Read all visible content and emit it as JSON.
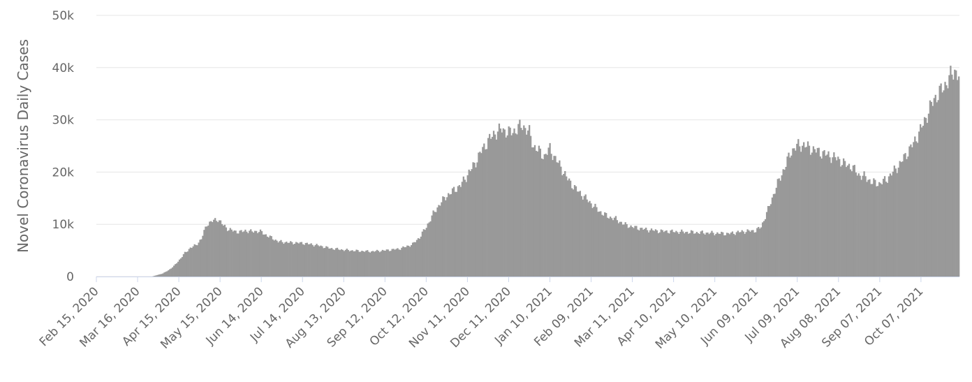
{
  "chart_data": {
    "type": "bar",
    "ylabel": "Novel Coronavirus Daily Cases",
    "ylim": [
      0,
      50000
    ],
    "y_ticks": [
      {
        "value": 0,
        "label": "0"
      },
      {
        "value": 10000,
        "label": "10k"
      },
      {
        "value": 20000,
        "label": "20k"
      },
      {
        "value": 30000,
        "label": "30k"
      },
      {
        "value": 40000,
        "label": "40k"
      },
      {
        "value": 50000,
        "label": "50k"
      }
    ],
    "x_ticks": [
      {
        "day": 0,
        "label": "Feb 15, 2020"
      },
      {
        "day": 30,
        "label": "Mar 16, 2020"
      },
      {
        "day": 60,
        "label": "Apr 15, 2020"
      },
      {
        "day": 90,
        "label": "May 15, 2020"
      },
      {
        "day": 120,
        "label": "Jun 14, 2020"
      },
      {
        "day": 150,
        "label": "Jul 14, 2020"
      },
      {
        "day": 180,
        "label": "Aug 13, 2020"
      },
      {
        "day": 210,
        "label": "Sep 12, 2020"
      },
      {
        "day": 240,
        "label": "Oct 12, 2020"
      },
      {
        "day": 270,
        "label": "Nov 11, 2020"
      },
      {
        "day": 300,
        "label": "Dec 11, 2020"
      },
      {
        "day": 330,
        "label": "Jan 10, 2021"
      },
      {
        "day": 360,
        "label": "Feb 09, 2021"
      },
      {
        "day": 390,
        "label": "Mar 11, 2021"
      },
      {
        "day": 420,
        "label": "Apr 10, 2021"
      },
      {
        "day": 450,
        "label": "May 10, 2021"
      },
      {
        "day": 480,
        "label": "Jun 09, 2021"
      },
      {
        "day": 510,
        "label": "Jul 09, 2021"
      },
      {
        "day": 540,
        "label": "Aug 08, 2021"
      },
      {
        "day": 570,
        "label": "Sep 07, 2021"
      },
      {
        "day": 600,
        "label": "Oct 07, 2021"
      }
    ],
    "x_range_days": [
      0,
      628
    ],
    "bar_color": "#999999",
    "grid": true,
    "key_points": [
      [
        0,
        0
      ],
      [
        40,
        0
      ],
      [
        44,
        300
      ],
      [
        48,
        600
      ],
      [
        52,
        1200
      ],
      [
        56,
        2000
      ],
      [
        60,
        3200
      ],
      [
        64,
        4500
      ],
      [
        68,
        5500
      ],
      [
        72,
        6000
      ],
      [
        76,
        7200
      ],
      [
        80,
        10000
      ],
      [
        84,
        10600
      ],
      [
        88,
        11000
      ],
      [
        92,
        9800
      ],
      [
        96,
        9000
      ],
      [
        100,
        8700
      ],
      [
        104,
        8500
      ],
      [
        108,
        8800
      ],
      [
        112,
        8600
      ],
      [
        116,
        8700
      ],
      [
        120,
        8500
      ],
      [
        124,
        7800
      ],
      [
        128,
        7300
      ],
      [
        132,
        6700
      ],
      [
        140,
        6500
      ],
      [
        150,
        6400
      ],
      [
        160,
        6000
      ],
      [
        170,
        5400
      ],
      [
        180,
        5100
      ],
      [
        190,
        4900
      ],
      [
        200,
        4800
      ],
      [
        210,
        5000
      ],
      [
        220,
        5300
      ],
      [
        225,
        5700
      ],
      [
        230,
        6200
      ],
      [
        235,
        7500
      ],
      [
        240,
        9500
      ],
      [
        245,
        12000
      ],
      [
        250,
        14000
      ],
      [
        255,
        15500
      ],
      [
        260,
        16500
      ],
      [
        265,
        17500
      ],
      [
        270,
        19500
      ],
      [
        275,
        21500
      ],
      [
        280,
        24000
      ],
      [
        285,
        26000
      ],
      [
        290,
        27500
      ],
      [
        295,
        28200
      ],
      [
        300,
        27500
      ],
      [
        305,
        28000
      ],
      [
        310,
        29000
      ],
      [
        315,
        27500
      ],
      [
        318,
        25000
      ],
      [
        322,
        24000
      ],
      [
        326,
        23000
      ],
      [
        330,
        24500
      ],
      [
        334,
        22500
      ],
      [
        338,
        21000
      ],
      [
        342,
        19000
      ],
      [
        348,
        17000
      ],
      [
        354,
        15500
      ],
      [
        360,
        14000
      ],
      [
        366,
        12500
      ],
      [
        372,
        11500
      ],
      [
        378,
        11000
      ],
      [
        384,
        10000
      ],
      [
        390,
        9500
      ],
      [
        400,
        9000
      ],
      [
        410,
        8700
      ],
      [
        420,
        8600
      ],
      [
        430,
        8500
      ],
      [
        440,
        8400
      ],
      [
        450,
        8300
      ],
      [
        460,
        8200
      ],
      [
        470,
        8600
      ],
      [
        480,
        8800
      ],
      [
        484,
        9500
      ],
      [
        487,
        11500
      ],
      [
        490,
        13500
      ],
      [
        494,
        16500
      ],
      [
        498,
        19000
      ],
      [
        502,
        21500
      ],
      [
        506,
        24000
      ],
      [
        510,
        25000
      ],
      [
        515,
        25200
      ],
      [
        520,
        24500
      ],
      [
        525,
        24000
      ],
      [
        530,
        23500
      ],
      [
        535,
        23000
      ],
      [
        540,
        22500
      ],
      [
        545,
        21500
      ],
      [
        550,
        21000
      ],
      [
        555,
        19500
      ],
      [
        560,
        19000
      ],
      [
        565,
        18000
      ],
      [
        570,
        17800
      ],
      [
        575,
        18500
      ],
      [
        580,
        20000
      ],
      [
        585,
        21500
      ],
      [
        590,
        23500
      ],
      [
        595,
        25500
      ],
      [
        600,
        28000
      ],
      [
        605,
        31000
      ],
      [
        610,
        34000
      ],
      [
        615,
        35500
      ],
      [
        620,
        37500
      ],
      [
        625,
        39500
      ],
      [
        628,
        38500
      ]
    ]
  }
}
